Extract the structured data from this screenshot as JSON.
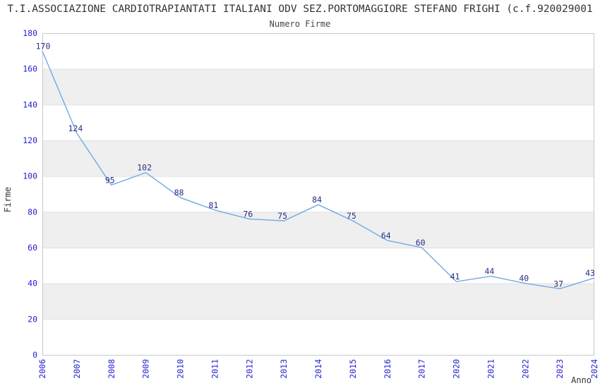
{
  "header": {
    "title": "T.I.ASSOCIAZIONE CARDIOTRAPIANTATI ITALIANI ODV SEZ.PORTOMAGGIORE STEFANO FRIGHI (c.f.920029001",
    "subtitle": "Numero Firme"
  },
  "chart_data": {
    "type": "line",
    "title": "T.I.ASSOCIAZIONE CARDIOTRAPIANTATI ITALIANI ODV SEZ.PORTOMAGGIORE STEFANO FRIGHI (c.f.920029001",
    "subtitle": "Numero Firme",
    "xlabel": "Anno",
    "ylabel": "Firme",
    "categories": [
      "2006",
      "2007",
      "2008",
      "2009",
      "2010",
      "2011",
      "2012",
      "2013",
      "2014",
      "2015",
      "2016",
      "2017",
      "2020",
      "2021",
      "2022",
      "2023",
      "2024"
    ],
    "values": [
      170,
      124,
      95,
      102,
      88,
      81,
      76,
      75,
      84,
      75,
      64,
      60,
      41,
      44,
      40,
      37,
      43
    ],
    "ylim": [
      0,
      180
    ],
    "ytick_step": 20,
    "grid": "horizontal gridlines with alternating shaded bands",
    "legend": "none",
    "markers": "none",
    "data_labels_visible": true,
    "x_tick_rotation_deg": 90,
    "colors": {
      "line": "#72a9e4",
      "tick_label": "#2424cc",
      "data_label": "#2c2c84",
      "band_fill": "#efefef",
      "gridline": "#e0e0e0",
      "plot_border": "#c9c9c9",
      "text": "#333333",
      "background": "#ffffff"
    }
  }
}
